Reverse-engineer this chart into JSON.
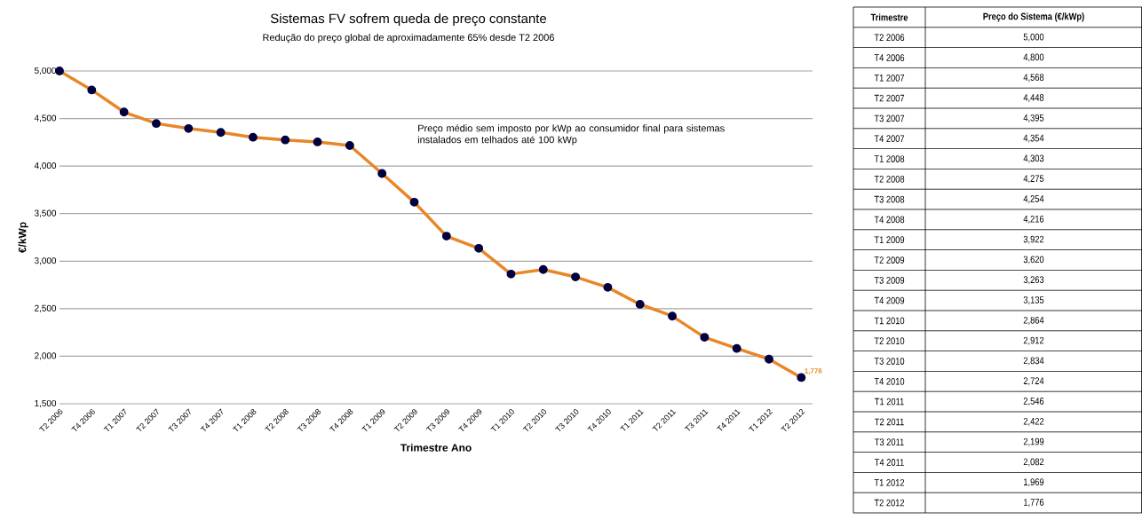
{
  "chart_data": [
    {
      "type": "line",
      "title": "Sistemas FV sofrem queda de preço constante",
      "subtitle": "Redução do preço global de aproximadamente 65% desde T2 2006",
      "xlabel": "Trimestre Ano",
      "ylabel": "€/kWp",
      "categories": [
        "T2 2006",
        "T4 2006",
        "T1 2007",
        "T2 2007",
        "T3 2007",
        "T4 2007",
        "T1 2008",
        "T2 2008",
        "T3 2008",
        "T4 2008",
        "T1 2009",
        "T2 2009",
        "T3 2009",
        "T4 2009",
        "T1 2010",
        "T2 2010",
        "T3 2010",
        "T4 2010",
        "T1 2011",
        "T2 2011",
        "T3 2011",
        "T4 2011",
        "T1 2012",
        "T2 2012"
      ],
      "values": [
        5000,
        4800,
        4568,
        4448,
        4395,
        4354,
        4303,
        4275,
        4254,
        4216,
        3922,
        3620,
        3263,
        3135,
        2864,
        2912,
        2834,
        2724,
        2546,
        2422,
        2199,
        2082,
        1969,
        1776
      ],
      "value_labels": [
        null,
        null,
        null,
        null,
        null,
        null,
        null,
        null,
        null,
        null,
        null,
        null,
        null,
        null,
        null,
        null,
        null,
        null,
        null,
        null,
        null,
        null,
        null,
        "1,776"
      ],
      "color": "#e8872a",
      "marker": "circle",
      "line_style": "solid",
      "grid": "y",
      "ylim": [
        1500,
        5000
      ],
      "yticks": [
        {
          "value": 1500,
          "label": "1,500"
        },
        {
          "value": 2000,
          "label": "2,000"
        },
        {
          "value": 2500,
          "label": "2,500"
        },
        {
          "value": 3000,
          "label": "3,000"
        },
        {
          "value": 3500,
          "label": "3,500"
        },
        {
          "value": 4000,
          "label": "4,000"
        },
        {
          "value": 4500,
          "label": "4,500"
        },
        {
          "value": 5000,
          "label": "5,000"
        }
      ],
      "annotations": [
        "Preço médio sem imposto por kWp ao consumidor final para sistemas instalados em telhados até 100 kWp"
      ]
    },
    {
      "type": "other",
      "xlabel": "Trimestre",
      "ylabel": "Preço do Sistema (€/kWp)",
      "categories": [
        "T2 2006",
        "T4 2006",
        "T1 2007",
        "T2 2007",
        "T3 2007",
        "T4 2007",
        "T1 2008",
        "T2 2008",
        "T3 2008",
        "T4 2008",
        "T1 2009",
        "T2 2009",
        "T3 2009",
        "T4 2009",
        "T1 2010",
        "T2 2010",
        "T3 2010",
        "T4 2010",
        "T1 2011",
        "T2 2011",
        "T3 2011",
        "T4 2011",
        "T1 2012",
        "T2 2012"
      ],
      "values": [
        5000,
        4800,
        4568,
        4448,
        4395,
        4354,
        4303,
        4275,
        4254,
        4216,
        3922,
        3620,
        3263,
        3135,
        2864,
        2912,
        2834,
        2724,
        2546,
        2422,
        2199,
        2082,
        1969,
        1776
      ],
      "value_labels": [
        "5,000",
        "4,800",
        "4,568",
        "4,448",
        "4,395",
        "4,354",
        "4,303",
        "4,275",
        "4,254",
        "4,216",
        "3,922",
        "3,620",
        "3,263",
        "3,135",
        "2,864",
        "2,912",
        "2,834",
        "2,724",
        "2,546",
        "2,422",
        "2,199",
        "2,082",
        "1,969",
        "1,776"
      ]
    }
  ]
}
